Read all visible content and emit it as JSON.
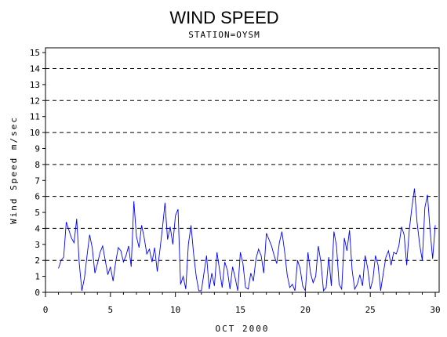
{
  "chart_data": {
    "type": "line",
    "title": "WIND SPEED",
    "subtitle": "STATION=OYSM",
    "xlabel": "OCT 2000",
    "ylabel": "Wind Speed m/sec",
    "xlim": [
      0,
      30.3
    ],
    "ylim": [
      0,
      15.3
    ],
    "x_ticks": [
      0,
      5,
      10,
      15,
      20,
      25,
      30
    ],
    "y_ticks": [
      0,
      1,
      2,
      3,
      4,
      5,
      6,
      7,
      8,
      9,
      10,
      11,
      12,
      13,
      14,
      15
    ],
    "reference_lines": [
      0,
      2,
      4,
      6,
      8,
      10,
      12,
      14
    ],
    "grid": false,
    "line_color": "#0000ff",
    "series": [
      {
        "x": [
          1.0,
          1.2,
          1.4,
          1.6,
          1.8,
          2.0,
          2.2,
          2.4,
          2.6,
          2.8,
          3.0,
          3.2,
          3.4,
          3.6,
          3.8,
          4.0,
          4.2,
          4.4,
          4.6,
          4.8,
          5.0,
          5.2,
          5.4,
          5.6,
          5.8,
          6.0,
          6.2,
          6.4,
          6.6,
          6.8,
          7.0,
          7.2,
          7.4,
          7.6,
          7.8,
          8.0,
          8.2,
          8.4,
          8.6,
          8.8,
          9.0,
          9.2,
          9.4,
          9.6,
          9.8,
          10.0,
          10.2,
          10.4,
          10.6,
          10.8,
          11.0,
          11.2,
          11.4,
          11.6,
          11.8,
          12.0,
          12.2,
          12.4,
          12.6,
          12.8,
          13.0,
          13.2,
          13.4,
          13.6,
          13.8,
          14.0,
          14.2,
          14.4,
          14.6,
          14.8,
          15.0,
          15.2,
          15.4,
          15.6,
          15.8,
          16.0,
          16.2,
          16.4,
          16.6,
          16.8,
          17.0,
          17.2,
          17.4,
          17.6,
          17.8,
          18.0,
          18.2,
          18.4,
          18.6,
          18.8,
          19.0,
          19.2,
          19.4,
          19.6,
          19.8,
          20.0,
          20.2,
          20.4,
          20.6,
          20.8,
          21.0,
          21.2,
          21.4,
          21.6,
          21.8,
          22.0,
          22.2,
          22.4,
          22.6,
          22.8,
          23.0,
          23.2,
          23.4,
          23.6,
          23.8,
          24.0,
          24.2,
          24.4,
          24.6,
          24.8,
          25.0,
          25.2,
          25.4,
          25.6,
          25.8,
          26.0,
          26.2,
          26.4,
          26.6,
          26.8,
          27.0,
          27.2,
          27.4,
          27.6,
          27.8,
          28.0,
          28.2,
          28.4,
          28.6,
          28.8,
          29.0,
          29.2,
          29.4,
          29.6,
          29.8,
          30.0
        ],
        "y": [
          1.5,
          2.0,
          2.2,
          4.4,
          3.9,
          3.4,
          3.1,
          4.6,
          1.8,
          0.1,
          0.9,
          2.3,
          3.6,
          2.8,
          1.2,
          1.8,
          2.5,
          2.9,
          2.0,
          1.1,
          1.6,
          0.7,
          1.9,
          2.8,
          2.6,
          1.9,
          2.3,
          2.9,
          1.6,
          5.7,
          3.5,
          2.8,
          4.2,
          3.4,
          2.4,
          2.7,
          1.9,
          2.8,
          1.3,
          2.6,
          4.0,
          5.6,
          3.3,
          4.1,
          3.0,
          4.8,
          5.2,
          0.5,
          1.0,
          0.2,
          3.0,
          4.2,
          2.4,
          1.0,
          0.1,
          0.1,
          1.2,
          2.3,
          0.2,
          1.2,
          0.4,
          2.5,
          1.4,
          0.3,
          1.9,
          1.4,
          0.2,
          1.6,
          0.9,
          0.1,
          2.5,
          1.8,
          0.3,
          0.2,
          1.2,
          0.7,
          2.1,
          2.7,
          2.3,
          1.2,
          3.7,
          3.3,
          2.9,
          2.3,
          1.8,
          3.1,
          3.8,
          2.6,
          1.1,
          0.3,
          0.5,
          0.1,
          2.0,
          1.5,
          0.4,
          0.1,
          2.5,
          1.2,
          0.6,
          1.0,
          2.9,
          1.9,
          0.1,
          0.3,
          2.2,
          0.4,
          3.8,
          2.9,
          0.5,
          0.2,
          3.4,
          2.6,
          3.9,
          1.4,
          0.2,
          0.5,
          1.1,
          0.4,
          2.3,
          1.5,
          0.2,
          0.8,
          2.3,
          1.7,
          0.1,
          1.2,
          2.2,
          2.6,
          1.7,
          2.5,
          2.4,
          2.9,
          4.1,
          3.6,
          1.7,
          3.9,
          5.3,
          6.5,
          4.4,
          3.0,
          2.0,
          5.3,
          6.1,
          3.9,
          2.1,
          4.2
        ]
      }
    ]
  }
}
